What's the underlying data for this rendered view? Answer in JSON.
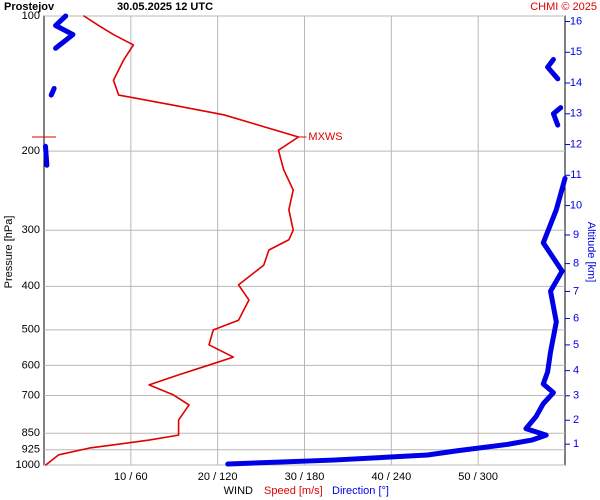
{
  "chart_data": {
    "type": "line",
    "title": "Prostejov",
    "subtitle": "30.05.2025 12 UTC",
    "credit": "CHMI © 2025",
    "ylabel": "Pressure [hPa]",
    "y2label": "Altitude [km]",
    "xlabel": "WIND",
    "xlabel_speed": "Speed [m/s]",
    "xlabel_direction": "Direction [°]",
    "annotation": "MXWS",
    "log_y": true,
    "grid": true,
    "ylim": [
      1000,
      100
    ],
    "yticks": [
      100,
      200,
      300,
      400,
      500,
      600,
      700,
      850,
      925,
      1000
    ],
    "xlim": [
      0,
      60
    ],
    "x2lim": [
      0,
      360
    ],
    "xticks": [
      {
        "value": 10,
        "label": "10 / 60"
      },
      {
        "value": 20,
        "label": "20 / 120"
      },
      {
        "value": 30,
        "label": "30 / 180"
      },
      {
        "value": 40,
        "label": "40 / 240"
      },
      {
        "value": 50,
        "label": "50 / 300"
      }
    ],
    "y2ticks": [
      1,
      2,
      3,
      4,
      5,
      6,
      7,
      8,
      9,
      10,
      11,
      12,
      13,
      14,
      15,
      16
    ],
    "series": [
      {
        "name": "Speed [m/s]",
        "color": "#e00000",
        "pressure": [
          1000,
          949,
          917,
          880,
          858,
          794,
          735,
          698,
          663,
          630,
          599,
          575,
          540,
          500,
          476,
          429,
          397,
          359,
          332,
          315,
          300,
          270,
          244,
          220,
          199,
          186,
          175,
          166,
          158,
          150,
          139,
          125,
          116,
          110,
          105,
          100
        ],
        "values": [
          0.2,
          1.7,
          5.2,
          12.1,
          15.5,
          15.5,
          16.7,
          14.9,
          12.1,
          15.5,
          19.0,
          21.8,
          19.0,
          19.5,
          22.4,
          23.6,
          22.4,
          25.3,
          25.9,
          28.2,
          28.7,
          28.2,
          28.7,
          27.6,
          27.0,
          29.3,
          24.7,
          20.7,
          14.9,
          8.6,
          8.0,
          9.2,
          10.3,
          8.0,
          6.3,
          4.6
        ]
      },
      {
        "name": "Direction [°]",
        "color": "#0000e6",
        "axis": "x2",
        "pressure": [
          995,
          975,
          950,
          930,
          900,
          880,
          858,
          830,
          780,
          730,
          690,
          660,
          620,
          560,
          480,
          410,
          370,
          320,
          270,
          230,
          null,
          215,
          195,
          null,
          175,
          165,
          160,
          null,
          150,
          145,
          null,
          138,
          130,
          125,
          null,
          118,
          110,
          105,
          100
        ],
        "values": [
          127,
          200,
          265,
          285,
          320,
          337,
          347,
          333,
          340,
          345,
          352,
          345,
          348,
          350,
          354,
          350,
          358,
          345,
          354,
          360,
          null,
          2,
          1,
          null,
          355,
          352,
          357,
          null,
          5,
          7,
          null,
          355,
          348,
          352,
          null,
          8,
          20,
          8,
          15
        ]
      }
    ]
  }
}
